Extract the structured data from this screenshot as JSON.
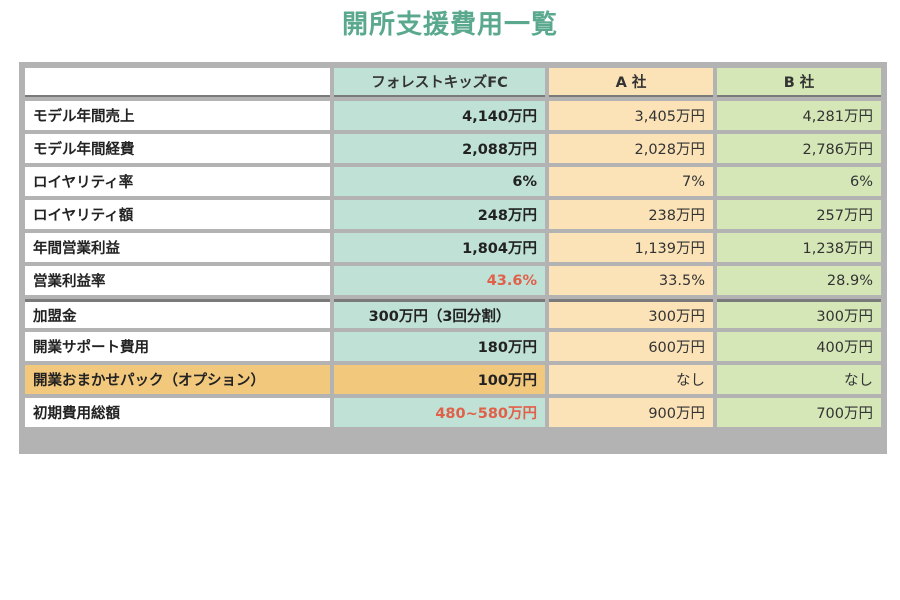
{
  "title": "開所支援費用一覧",
  "columns": [
    "",
    "フォレストキッズFC",
    "A 社",
    "B 社"
  ],
  "rows": [
    {
      "label": "モデル年間売上",
      "fc": "4,140万円",
      "a": "3,405万円",
      "b": "4,281万円"
    },
    {
      "label": "モデル年間経費",
      "fc": "2,088万円",
      "a": "2,028万円",
      "b": "2,786万円"
    },
    {
      "label": "ロイヤリティ率",
      "fc": "6%",
      "a": "7%",
      "b": "6%"
    },
    {
      "label": "ロイヤリティ額",
      "fc": "248万円",
      "a": "238万円",
      "b": "257万円"
    },
    {
      "label": "年間営業利益",
      "fc": "1,804万円",
      "a": "1,139万円",
      "b": "1,238万円"
    },
    {
      "label": "営業利益率",
      "fc": "43.6%",
      "a": "33.5%",
      "b": "28.9%"
    },
    {
      "label": "加盟金",
      "fc": "300万円（3回分割）",
      "a": "300万円",
      "b": "300万円"
    },
    {
      "label": "開業サポート費用",
      "fc": "180万円",
      "a": "600万円",
      "b": "400万円"
    },
    {
      "label": "開業おまかせパック（オプション）",
      "fc": "100万円",
      "a": "なし",
      "b": "なし"
    },
    {
      "label": "初期費用総額",
      "fc": "480~580万円",
      "a": "900万円",
      "b": "700万円"
    }
  ],
  "colors": {
    "title": "#5aa88e",
    "fc_column": "#bfe1d6",
    "a_column": "#fbe3b7",
    "b_column": "#d6e7b7",
    "option_highlight": "#f2c87d",
    "emphasis_text": "#e0604a"
  }
}
